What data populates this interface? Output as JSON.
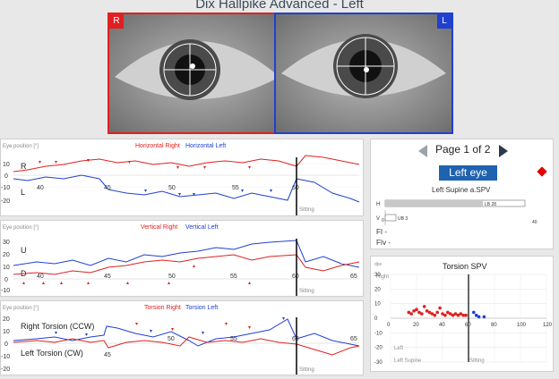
{
  "title": "Dix Hallpike Advanced - Left",
  "eyes": {
    "right_tag": "R",
    "left_tag": "L"
  },
  "colors": {
    "right": "#e02020",
    "left": "#2040d0",
    "accent": "#1e62b0"
  },
  "plots": [
    {
      "name": "horizontal",
      "ylabel": "Eye position [°]",
      "legend_right": "Horizontal Right",
      "legend_left": "Horizontal Left",
      "upper_label": "R",
      "lower_label": "L",
      "yticks": [
        "10",
        "0",
        "-10",
        "-20"
      ],
      "xticks": [
        "40",
        "45",
        "50",
        "55",
        "60"
      ],
      "marker": "Sitting"
    },
    {
      "name": "vertical",
      "ylabel": "Eye position [°]",
      "legend_right": "Vertical Right",
      "legend_left": "Vertical Left",
      "upper_label": "U",
      "lower_label": "D",
      "yticks": [
        "30",
        "20",
        "10",
        "0",
        "-10"
      ],
      "xticks": [
        "40",
        "45",
        "50",
        "55",
        "60",
        "65"
      ],
      "marker": "Sitting"
    },
    {
      "name": "torsion",
      "ylabel": "Eye position [°]",
      "legend_right": "Torsion Right",
      "legend_left": "Torsion Left",
      "upper_label": "Right Torsion (CCW)",
      "lower_label": "Left Torsion (CW)",
      "yticks": [
        "20",
        "10",
        "0",
        "-10",
        "-20"
      ],
      "xticks": [
        "45",
        "50",
        "55",
        "60",
        "65"
      ],
      "marker": "Sitting"
    }
  ],
  "side": {
    "page_label": "Page 1 of 2",
    "eye_button": "Left eye",
    "spv_title": "Left Supine a.SPV",
    "bars": [
      {
        "label": "H",
        "value_text": "LB 28",
        "fraction": 0.7
      },
      {
        "label": "V",
        "value_text": "UB 3",
        "fraction": 0.075
      }
    ],
    "bar_axis": [
      "0",
      "40"
    ],
    "fi_label": "FI -",
    "fiv_label": "FIv -"
  },
  "torsion_spv": {
    "title": "Torsion SPV",
    "yunit": "dps",
    "upper": "Right",
    "lower_left": "Left",
    "lower_supine": "Left Supine",
    "lower_sitting": "Sitting",
    "yticks": [
      "30",
      "20",
      "10",
      "0",
      "-10",
      "-20",
      "-30"
    ],
    "xticks": [
      "0",
      "20",
      "40",
      "60",
      "80",
      "100",
      "120"
    ]
  },
  "chart_data": {
    "type": "scatter",
    "title": "Torsion SPV",
    "xlim": [
      0,
      120
    ],
    "ylim": [
      -30,
      30
    ],
    "series": [
      {
        "name": "Right",
        "color": "#e02020",
        "points": [
          [
            14,
            4
          ],
          [
            16,
            3
          ],
          [
            18,
            5
          ],
          [
            20,
            6
          ],
          [
            22,
            4
          ],
          [
            24,
            3
          ],
          [
            26,
            8
          ],
          [
            28,
            5
          ],
          [
            30,
            4
          ],
          [
            32,
            3
          ],
          [
            34,
            2
          ],
          [
            36,
            4
          ],
          [
            38,
            7
          ],
          [
            40,
            3
          ],
          [
            42,
            2
          ],
          [
            44,
            4
          ],
          [
            46,
            3
          ],
          [
            48,
            2
          ],
          [
            50,
            3
          ],
          [
            52,
            2
          ],
          [
            54,
            3
          ],
          [
            56,
            2
          ],
          [
            58,
            2
          ]
        ]
      },
      {
        "name": "Left",
        "color": "#2040d0",
        "points": [
          [
            64,
            4
          ],
          [
            66,
            2
          ],
          [
            68,
            1
          ],
          [
            72,
            1
          ]
        ]
      }
    ]
  }
}
